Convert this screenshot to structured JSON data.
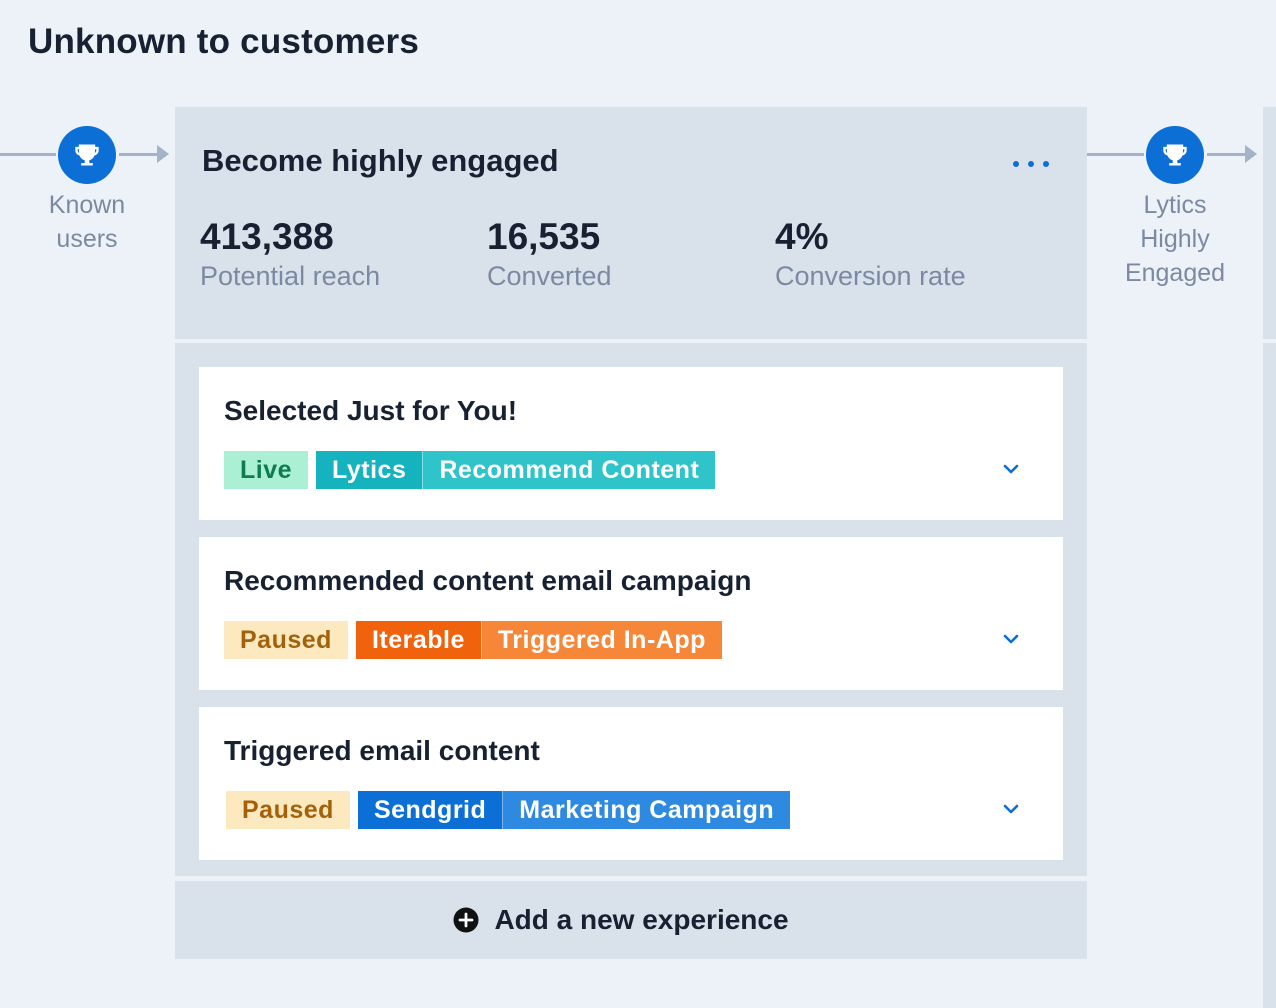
{
  "page": {
    "title": "Unknown to customers"
  },
  "milestones": {
    "previous": {
      "icon": "trophy-icon",
      "label_lines": [
        "Known",
        "users"
      ]
    },
    "next": {
      "icon": "trophy-icon",
      "label_lines": [
        "Lytics",
        "Highly",
        "Engaged"
      ]
    }
  },
  "stage": {
    "title": "Become highly engaged",
    "more_icon": "more-horizontal-icon",
    "stats": [
      {
        "value": "413,388",
        "label": "Potential reach"
      },
      {
        "value": "16,535",
        "label": "Converted"
      },
      {
        "value": "4%",
        "label": "Conversion rate"
      }
    ],
    "experiences": [
      {
        "title": "Selected Just for You!",
        "status": "Live",
        "provider": "Lytics",
        "type": "Recommend Content",
        "expand_icon": "chevron-down-icon"
      },
      {
        "title": "Recommended content email campaign",
        "status": "Paused",
        "provider": "Iterable",
        "type": "Triggered In-App",
        "expand_icon": "chevron-down-icon"
      },
      {
        "title": "Triggered email content",
        "status": "Paused",
        "provider": "Sendgrid",
        "type": "Marketing Campaign",
        "expand_icon": "chevron-down-icon"
      }
    ],
    "add_button": {
      "icon": "plus-circle-icon",
      "label": "Add a new experience"
    }
  },
  "colors": {
    "accent": "#0b6fd6",
    "live": "#abefd5",
    "paused": "#fde9c0",
    "lytics": "#15b3bd",
    "iterable": "#f0620c",
    "sendgrid": "#0b6fd6"
  }
}
